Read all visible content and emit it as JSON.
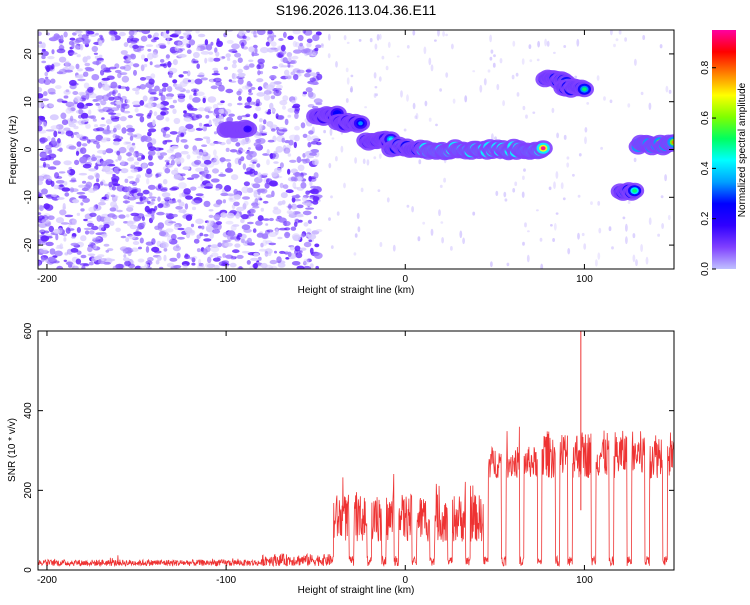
{
  "title": "S196.2026.113.04.36.E11",
  "colors": {
    "snr_line": "#ee3333",
    "axis": "#000000",
    "background": "#ffffff",
    "colormap": [
      "#c0c0ff",
      "#8040ff",
      "#3000ff",
      "#0000ff",
      "#00a0ff",
      "#00ffff",
      "#00ff60",
      "#80ff00",
      "#ffff00",
      "#ff8000",
      "#ff0000",
      "#ff00a0"
    ]
  },
  "chart_data": [
    {
      "type": "heatmap",
      "title": "S196.2026.113.04.36.E11",
      "xlabel": "Height of straight line (km)",
      "ylabel": "Frequency (Hz)",
      "xlim": [
        -205,
        150
      ],
      "ylim": [
        -25,
        25
      ],
      "x_ticks": [
        -200,
        -100,
        0,
        100
      ],
      "y_ticks": [
        -20,
        -10,
        0,
        10,
        20
      ],
      "x_tick_labels": [
        "-200",
        "-100",
        "0",
        "100"
      ],
      "y_tick_labels": [
        "-20",
        "-10",
        "0",
        "10",
        "20"
      ],
      "colorbar": {
        "label": "Normalized spectral amplitude",
        "range": [
          0,
          0.95
        ],
        "ticks": [
          0,
          0.2,
          0.4,
          0.6,
          0.8
        ],
        "tick_labels": [
          "0.0",
          "0.2",
          "0.4",
          "0.6",
          "0.8"
        ]
      },
      "noise_region_km": [
        -205,
        -48
      ],
      "noise_amplitude": 0.15,
      "tracks": [
        {
          "x_start": -100,
          "x_end": -88,
          "freq_hz": 4.5,
          "amplitude": 0.2
        },
        {
          "x_start": -50,
          "x_end": -38,
          "freq_hz": 7,
          "amplitude": 0.3
        },
        {
          "x_start": -38,
          "x_end": -25,
          "freq_hz": 5.5,
          "amplitude": 0.35
        },
        {
          "x_start": -22,
          "x_end": -8,
          "freq_hz": 2,
          "amplitude": 0.45
        },
        {
          "x_start": -8,
          "x_end": 10,
          "freq_hz": 0.5,
          "amplitude": 0.55
        },
        {
          "x_start": 10,
          "x_end": 77,
          "freq_hz": 0,
          "amplitude": 0.92
        },
        {
          "x_start": 78,
          "x_end": 90,
          "freq_hz": 14.5,
          "amplitude": 0.6
        },
        {
          "x_start": 88,
          "x_end": 100,
          "freq_hz": 13,
          "amplitude": 0.5
        },
        {
          "x_start": 120,
          "x_end": 128,
          "freq_hz": -8.5,
          "amplitude": 0.55
        },
        {
          "x_start": 130,
          "x_end": 150,
          "freq_hz": 1,
          "amplitude": 0.8
        }
      ]
    },
    {
      "type": "line",
      "xlabel": "Height of straight line (km)",
      "ylabel": "SNR (10 * v/v)",
      "xlim": [
        -205,
        150
      ],
      "ylim": [
        0,
        600
      ],
      "x_ticks": [
        -200,
        -100,
        0,
        100
      ],
      "y_ticks": [
        0,
        200,
        400,
        600
      ],
      "x_tick_labels": [
        "-200",
        "-100",
        "0",
        "100"
      ],
      "y_tick_labels": [
        "0",
        "200",
        "400",
        "600"
      ],
      "segments": [
        {
          "x_start": -205,
          "x_end": -80,
          "mean": 18,
          "spread": 8
        },
        {
          "x_start": -80,
          "x_end": -40,
          "mean": 25,
          "spread": 15
        },
        {
          "x_start": -40,
          "x_end": 45,
          "mean": 130,
          "spread": 60
        },
        {
          "x_start": 45,
          "x_end": 75,
          "mean": 270,
          "spread": 40
        },
        {
          "x_start": 75,
          "x_end": 150,
          "mean": 290,
          "spread": 60
        }
      ],
      "dropouts_km": [
        -30,
        -20,
        -12,
        -5,
        5,
        15,
        25,
        35,
        45,
        55,
        65,
        75,
        85,
        92,
        105,
        115,
        125,
        135,
        145
      ],
      "spike": {
        "x": 98,
        "y": 600
      }
    }
  ]
}
